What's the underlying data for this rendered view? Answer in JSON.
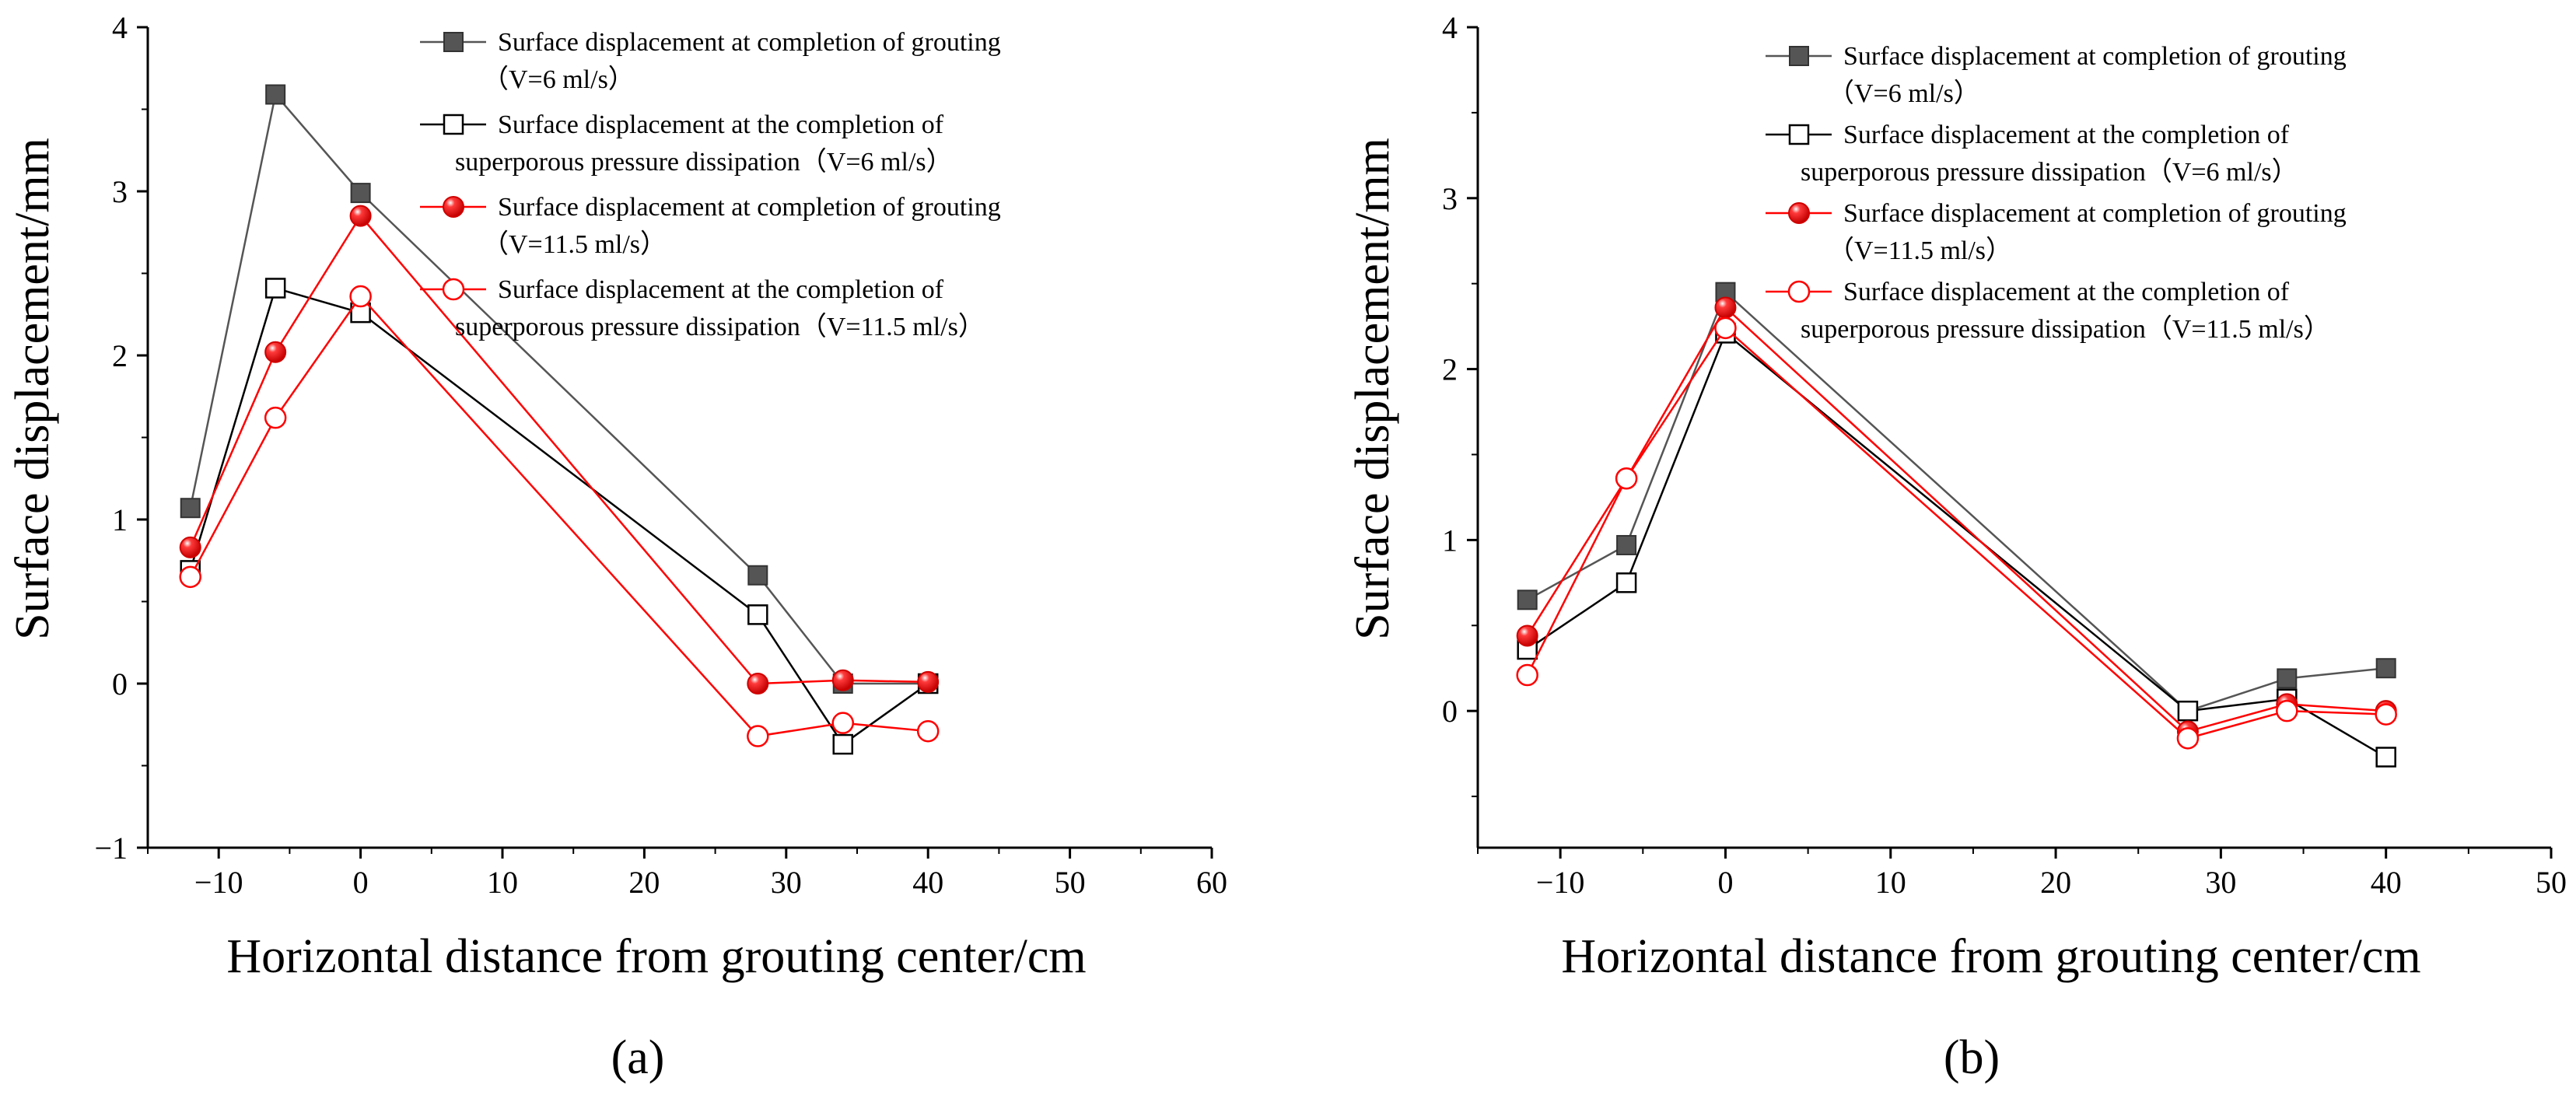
{
  "figure": {
    "panel_labels": [
      "(a)",
      "(b)"
    ]
  },
  "chart_data": [
    {
      "type": "line",
      "panel": "(a)",
      "xlabel": "Horizontal distance from grouting center/cm",
      "ylabel": "Surface displacement/mm",
      "xlim": [
        -15,
        60
      ],
      "ylim": [
        -1,
        4
      ],
      "xticks": [
        -10,
        0,
        10,
        20,
        30,
        40,
        50,
        60
      ],
      "yticks": [
        -1,
        0,
        1,
        2,
        3,
        4
      ],
      "x": [
        -12,
        -6,
        0,
        28,
        34,
        40
      ],
      "legend_position": "top-right",
      "series": [
        {
          "name": "Surface displacement at completion of grouting",
          "name2": "（V=6 ml/s）",
          "color": "#555555",
          "marker": "square-filled",
          "values": [
            1.07,
            3.59,
            2.99,
            0.66,
            0.0,
            0.0
          ]
        },
        {
          "name": "Surface displacement at the completion of",
          "name2": "superporous pressure dissipation（V=6 ml/s）",
          "color": "#000000",
          "marker": "square-open",
          "values": [
            0.69,
            2.41,
            2.26,
            0.42,
            -0.37,
            0.0
          ]
        },
        {
          "name": "Surface displacement at completion of grouting",
          "name2": "（V=11.5 ml/s）",
          "color": "#ff0000",
          "marker": "circle-filled",
          "values": [
            0.83,
            2.02,
            2.85,
            0.0,
            0.02,
            0.01
          ]
        },
        {
          "name": "Surface displacement at the completion of",
          "name2": "superporous pressure dissipation（V=11.5 ml/s）",
          "color": "#ff0000",
          "marker": "circle-open",
          "values": [
            0.65,
            1.62,
            2.36,
            -0.32,
            -0.24,
            -0.29
          ]
        }
      ]
    },
    {
      "type": "line",
      "panel": "(b)",
      "xlabel": "Horizontal distance from grouting center/cm",
      "ylabel": "Surface displacement/mm",
      "xlim": [
        -15,
        50
      ],
      "ylim": [
        -0.8,
        4
      ],
      "xticks": [
        -10,
        0,
        10,
        20,
        30,
        40,
        50
      ],
      "yticks": [
        0,
        1,
        2,
        3,
        4
      ],
      "x": [
        -12,
        -6,
        0,
        28,
        34,
        40
      ],
      "legend_position": "top-right",
      "series": [
        {
          "name": "Surface displacement at completion of grouting",
          "name2": "（V=6 ml/s）",
          "color": "#555555",
          "marker": "square-filled",
          "values": [
            0.65,
            0.97,
            2.45,
            0.0,
            0.19,
            0.25
          ]
        },
        {
          "name": "Surface displacement at the completion of",
          "name2": "superporous pressure dissipation（V=6 ml/s）",
          "color": "#000000",
          "marker": "square-open",
          "values": [
            0.36,
            0.75,
            2.21,
            0.0,
            0.07,
            -0.27
          ]
        },
        {
          "name": "Surface displacement at completion of grouting",
          "name2": "（V=11.5 ml/s）",
          "color": "#ff0000",
          "marker": "circle-filled",
          "values": [
            0.44,
            1.36,
            2.36,
            -0.12,
            0.04,
            0.0
          ]
        },
        {
          "name": "Surface displacement at the completion of",
          "name2": "superporous pressure dissipation（V=11.5 ml/s）",
          "color": "#ff0000",
          "marker": "circle-open",
          "values": [
            0.21,
            1.36,
            2.24,
            -0.16,
            0.0,
            -0.02
          ]
        }
      ]
    }
  ]
}
